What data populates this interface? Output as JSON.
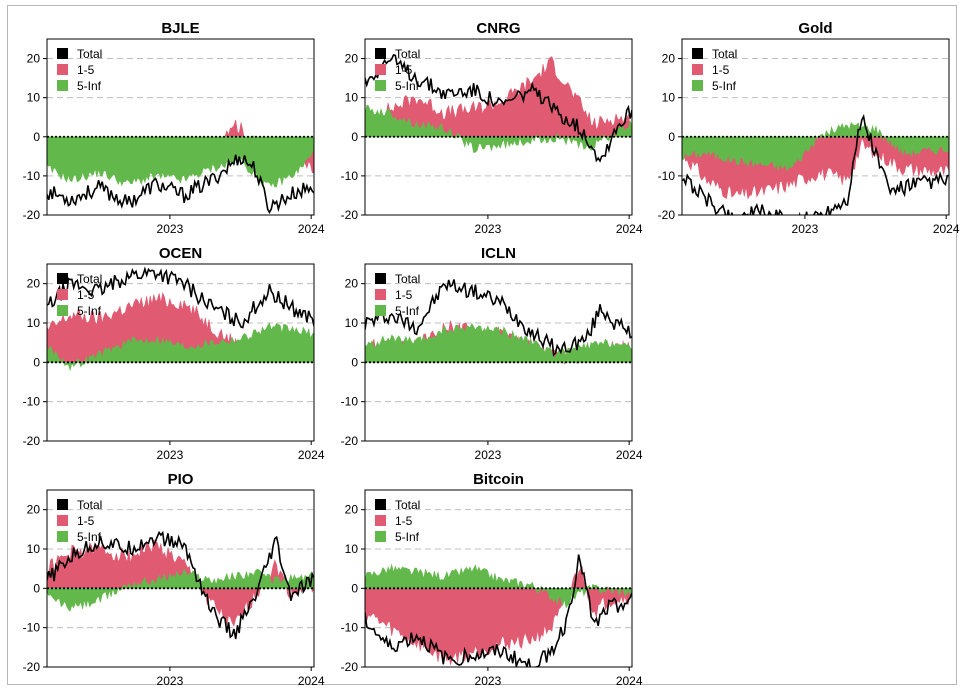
{
  "chart_data": {
    "type": "area",
    "legend_placement": "top-left",
    "colors": {
      "total": "#000000",
      "short": "#e05a72",
      "long": "#63b84c",
      "grid": "#bfbfbf",
      "zero": "#000000"
    },
    "series_names": [
      "Total",
      "1-5",
      "5-Inf"
    ],
    "y_ticks": [
      "20",
      "10",
      "0",
      "-10",
      "-20"
    ],
    "ylim": [
      -20,
      25
    ],
    "x_ticks": [
      "2023",
      "2024"
    ],
    "x_tick_positions": [
      2023.0,
      2024.0
    ],
    "xlim": [
      2022.13,
      2024.02
    ],
    "grid": "horizontal-dashed",
    "panels": [
      {
        "title": "BJLE",
        "total": [
          [
            2022.13,
            -14
          ],
          [
            2022.3,
            -16
          ],
          [
            2022.5,
            -13
          ],
          [
            2022.7,
            -17
          ],
          [
            2022.9,
            -12
          ],
          [
            2023.1,
            -15
          ],
          [
            2023.3,
            -11
          ],
          [
            2023.5,
            -5
          ],
          [
            2023.6,
            -8
          ],
          [
            2023.7,
            -18
          ],
          [
            2023.9,
            -14
          ],
          [
            2024.02,
            -13
          ]
        ],
        "short": [
          [
            2022.13,
            -6
          ],
          [
            2022.3,
            -4
          ],
          [
            2022.5,
            -7
          ],
          [
            2022.7,
            -3
          ],
          [
            2022.9,
            -5
          ],
          [
            2023.1,
            -2
          ],
          [
            2023.3,
            -3
          ],
          [
            2023.45,
            4
          ],
          [
            2023.6,
            -2
          ],
          [
            2023.8,
            -3
          ],
          [
            2024.02,
            -9
          ]
        ],
        "long": [
          [
            2022.13,
            -8
          ],
          [
            2022.3,
            -11
          ],
          [
            2022.5,
            -9
          ],
          [
            2022.7,
            -12
          ],
          [
            2022.9,
            -10
          ],
          [
            2023.1,
            -11
          ],
          [
            2023.3,
            -8
          ],
          [
            2023.5,
            -6
          ],
          [
            2023.7,
            -13
          ],
          [
            2023.9,
            -9
          ],
          [
            2024.02,
            -4
          ]
        ]
      },
      {
        "title": "CNRG",
        "total": [
          [
            2022.13,
            14
          ],
          [
            2022.3,
            20
          ],
          [
            2022.5,
            15
          ],
          [
            2022.7,
            11
          ],
          [
            2022.9,
            12
          ],
          [
            2023.1,
            8
          ],
          [
            2023.3,
            12
          ],
          [
            2023.5,
            6
          ],
          [
            2023.6,
            4
          ],
          [
            2023.7,
            0
          ],
          [
            2023.8,
            -6
          ],
          [
            2023.9,
            2
          ],
          [
            2024.02,
            7
          ]
        ],
        "short": [
          [
            2022.13,
            4
          ],
          [
            2022.3,
            7
          ],
          [
            2022.5,
            10
          ],
          [
            2022.7,
            6
          ],
          [
            2022.9,
            7
          ],
          [
            2023.1,
            9
          ],
          [
            2023.3,
            14
          ],
          [
            2023.45,
            19
          ],
          [
            2023.6,
            11
          ],
          [
            2023.75,
            3
          ],
          [
            2023.9,
            5
          ],
          [
            2024.02,
            4
          ]
        ],
        "long": [
          [
            2022.13,
            7
          ],
          [
            2022.3,
            6
          ],
          [
            2022.5,
            3
          ],
          [
            2022.7,
            2
          ],
          [
            2022.9,
            -3
          ],
          [
            2023.1,
            -2
          ],
          [
            2023.3,
            -1
          ],
          [
            2023.5,
            0
          ],
          [
            2023.7,
            -3
          ],
          [
            2023.9,
            1
          ],
          [
            2024.02,
            3
          ]
        ]
      },
      {
        "title": "Gold",
        "total": [
          [
            2022.13,
            -10
          ],
          [
            2022.3,
            -16
          ],
          [
            2022.5,
            -21
          ],
          [
            2022.7,
            -19
          ],
          [
            2022.9,
            -22
          ],
          [
            2023.1,
            -20
          ],
          [
            2023.3,
            -16
          ],
          [
            2023.4,
            5
          ],
          [
            2023.5,
            -4
          ],
          [
            2023.6,
            -14
          ],
          [
            2023.8,
            -12
          ],
          [
            2024.02,
            -11
          ]
        ],
        "short": [
          [
            2022.13,
            -4
          ],
          [
            2022.3,
            -11
          ],
          [
            2022.5,
            -15
          ],
          [
            2022.7,
            -14
          ],
          [
            2022.9,
            -12
          ],
          [
            2023.1,
            -9
          ],
          [
            2023.3,
            -11
          ],
          [
            2023.4,
            -2
          ],
          [
            2023.5,
            -4
          ],
          [
            2023.7,
            -8
          ],
          [
            2024.02,
            -9
          ]
        ],
        "long": [
          [
            2022.13,
            -5
          ],
          [
            2022.3,
            -4
          ],
          [
            2022.5,
            -6
          ],
          [
            2022.7,
            -7
          ],
          [
            2022.9,
            -8
          ],
          [
            2023.1,
            0
          ],
          [
            2023.3,
            3
          ],
          [
            2023.5,
            2
          ],
          [
            2023.7,
            -4
          ],
          [
            2024.02,
            -3
          ]
        ]
      },
      {
        "title": "OCEN",
        "total": [
          [
            2022.13,
            14
          ],
          [
            2022.3,
            20
          ],
          [
            2022.5,
            18
          ],
          [
            2022.7,
            22
          ],
          [
            2022.9,
            23
          ],
          [
            2023.1,
            20
          ],
          [
            2023.3,
            14
          ],
          [
            2023.5,
            10
          ],
          [
            2023.7,
            18
          ],
          [
            2023.9,
            13
          ],
          [
            2024.02,
            11
          ]
        ],
        "short": [
          [
            2022.13,
            8
          ],
          [
            2022.3,
            12
          ],
          [
            2022.5,
            11
          ],
          [
            2022.7,
            14
          ],
          [
            2022.9,
            16
          ],
          [
            2023.1,
            15
          ],
          [
            2023.3,
            9
          ],
          [
            2023.5,
            4
          ],
          [
            2023.7,
            6
          ],
          [
            2023.9,
            3
          ],
          [
            2024.02,
            3
          ]
        ],
        "long": [
          [
            2022.13,
            4
          ],
          [
            2022.3,
            -1
          ],
          [
            2022.5,
            2
          ],
          [
            2022.7,
            5
          ],
          [
            2022.9,
            6
          ],
          [
            2023.1,
            4
          ],
          [
            2023.3,
            5
          ],
          [
            2023.5,
            6
          ],
          [
            2023.7,
            9
          ],
          [
            2023.9,
            8
          ],
          [
            2024.02,
            7
          ]
        ]
      },
      {
        "title": "ICLN",
        "total": [
          [
            2022.13,
            10
          ],
          [
            2022.3,
            12
          ],
          [
            2022.5,
            9
          ],
          [
            2022.7,
            20
          ],
          [
            2022.9,
            18
          ],
          [
            2023.1,
            15
          ],
          [
            2023.3,
            8
          ],
          [
            2023.5,
            3
          ],
          [
            2023.7,
            6
          ],
          [
            2023.8,
            14
          ],
          [
            2023.9,
            10
          ],
          [
            2024.02,
            7
          ]
        ],
        "short": [
          [
            2022.13,
            5
          ],
          [
            2022.3,
            3
          ],
          [
            2022.5,
            4
          ],
          [
            2022.7,
            9
          ],
          [
            2022.9,
            8
          ],
          [
            2023.1,
            7
          ],
          [
            2023.3,
            4
          ],
          [
            2023.5,
            1
          ],
          [
            2023.7,
            2
          ],
          [
            2023.9,
            4
          ],
          [
            2024.02,
            3
          ]
        ],
        "long": [
          [
            2022.13,
            4
          ],
          [
            2022.3,
            6
          ],
          [
            2022.5,
            5
          ],
          [
            2022.7,
            8
          ],
          [
            2022.9,
            9
          ],
          [
            2023.1,
            8
          ],
          [
            2023.3,
            5
          ],
          [
            2023.5,
            2
          ],
          [
            2023.7,
            4
          ],
          [
            2023.9,
            5
          ],
          [
            2024.02,
            3
          ]
        ]
      },
      {
        "title": "PIO",
        "total": [
          [
            2022.13,
            2
          ],
          [
            2022.3,
            8
          ],
          [
            2022.5,
            12
          ],
          [
            2022.7,
            10
          ],
          [
            2022.9,
            13
          ],
          [
            2023.1,
            11
          ],
          [
            2023.3,
            -6
          ],
          [
            2023.45,
            -12
          ],
          [
            2023.6,
            -3
          ],
          [
            2023.75,
            12
          ],
          [
            2023.85,
            -2
          ],
          [
            2024.02,
            2
          ]
        ],
        "short": [
          [
            2022.13,
            5
          ],
          [
            2022.3,
            9
          ],
          [
            2022.5,
            10
          ],
          [
            2022.7,
            8
          ],
          [
            2022.9,
            11
          ],
          [
            2023.1,
            6
          ],
          [
            2023.3,
            -4
          ],
          [
            2023.45,
            -10
          ],
          [
            2023.6,
            -2
          ],
          [
            2023.75,
            6
          ],
          [
            2023.85,
            -1
          ],
          [
            2024.02,
            1
          ]
        ],
        "long": [
          [
            2022.13,
            -2
          ],
          [
            2022.3,
            -5
          ],
          [
            2022.5,
            -3
          ],
          [
            2022.7,
            1
          ],
          [
            2022.9,
            2
          ],
          [
            2023.1,
            4
          ],
          [
            2023.3,
            2
          ],
          [
            2023.45,
            3
          ],
          [
            2023.6,
            4
          ],
          [
            2023.75,
            2
          ],
          [
            2024.02,
            3
          ]
        ]
      },
      {
        "title": "Bitcoin",
        "total": [
          [
            2022.13,
            -8
          ],
          [
            2022.3,
            -15
          ],
          [
            2022.5,
            -12
          ],
          [
            2022.7,
            -18
          ],
          [
            2022.9,
            -17
          ],
          [
            2023.1,
            -16
          ],
          [
            2023.3,
            -20
          ],
          [
            2023.45,
            -16
          ],
          [
            2023.55,
            -9
          ],
          [
            2023.65,
            8
          ],
          [
            2023.75,
            -10
          ],
          [
            2023.85,
            -5
          ],
          [
            2024.02,
            -3
          ]
        ],
        "short": [
          [
            2022.13,
            -6
          ],
          [
            2022.3,
            -10
          ],
          [
            2022.5,
            -14
          ],
          [
            2022.7,
            -18
          ],
          [
            2022.9,
            -16
          ],
          [
            2023.1,
            -14
          ],
          [
            2023.3,
            -13
          ],
          [
            2023.45,
            -10
          ],
          [
            2023.55,
            -4
          ],
          [
            2023.65,
            6
          ],
          [
            2023.75,
            -6
          ],
          [
            2023.85,
            -3
          ],
          [
            2024.02,
            -2
          ]
        ],
        "long": [
          [
            2022.13,
            3
          ],
          [
            2022.3,
            5
          ],
          [
            2022.5,
            4
          ],
          [
            2022.7,
            3
          ],
          [
            2022.9,
            5
          ],
          [
            2023.1,
            2
          ],
          [
            2023.3,
            1
          ],
          [
            2023.45,
            -2
          ],
          [
            2023.55,
            -4
          ],
          [
            2023.65,
            -1
          ],
          [
            2023.75,
            0
          ],
          [
            2024.02,
            -1
          ]
        ]
      }
    ]
  }
}
